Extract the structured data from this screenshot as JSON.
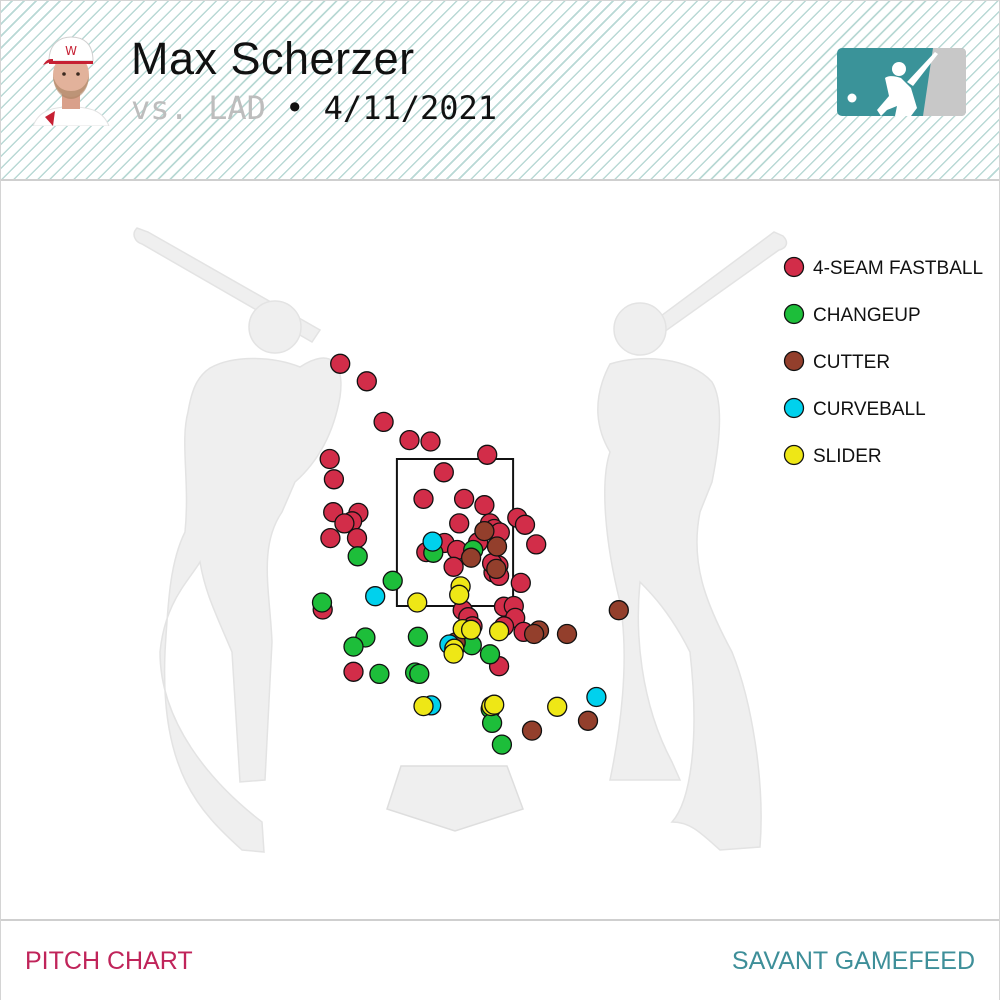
{
  "header": {
    "player_name": "Max Scherzer",
    "opponent": "vs. LAD",
    "separator": "•",
    "date": "4/11/2021"
  },
  "footer": {
    "left_label": "PITCH CHART",
    "right_label": "SAVANT GAMEFEED"
  },
  "icons": {
    "avatar": "player-headshot",
    "logo": "mlb-logo",
    "left_batter": "batter-silhouette-left",
    "right_batter": "batter-silhouette-right",
    "plate": "home-plate"
  },
  "colors": {
    "4-SEAM FASTBALL": "#d22d49",
    "CHANGEUP": "#1dbe3a",
    "CUTTER": "#933f2c",
    "CURVEBALL": "#00d1ed",
    "SLIDER": "#eee716",
    "logo_teal": "#3a9399",
    "logo_gray": "#c8c8c8",
    "silhouette": "#efefef"
  },
  "chart_data": {
    "type": "scatter",
    "xlabel": "",
    "ylabel": "",
    "xlim": [
      -2.6,
      2.6
    ],
    "ylim": [
      -0.3,
      5.7
    ],
    "strike_zone": {
      "x": [
        -0.83,
        0.83
      ],
      "z": [
        1.5,
        3.6
      ]
    },
    "legend": [
      "4-SEAM FASTBALL",
      "CHANGEUP",
      "CUTTER",
      "CURVEBALL",
      "SLIDER"
    ],
    "legend_position": "top-right",
    "grid": false,
    "pitches": [
      {
        "type": "4-SEAM FASTBALL",
        "x": -1.64,
        "z": 4.96
      },
      {
        "type": "4-SEAM FASTBALL",
        "x": -1.26,
        "z": 4.71
      },
      {
        "type": "4-SEAM FASTBALL",
        "x": -1.02,
        "z": 4.13
      },
      {
        "type": "4-SEAM FASTBALL",
        "x": -0.65,
        "z": 3.87
      },
      {
        "type": "4-SEAM FASTBALL",
        "x": -0.35,
        "z": 3.85
      },
      {
        "type": "4-SEAM FASTBALL",
        "x": 0.46,
        "z": 3.66
      },
      {
        "type": "4-SEAM FASTBALL",
        "x": -1.79,
        "z": 3.6
      },
      {
        "type": "4-SEAM FASTBALL",
        "x": -0.16,
        "z": 3.41
      },
      {
        "type": "4-SEAM FASTBALL",
        "x": -1.73,
        "z": 3.31
      },
      {
        "type": "4-SEAM FASTBALL",
        "x": -0.45,
        "z": 3.03
      },
      {
        "type": "4-SEAM FASTBALL",
        "x": 0.13,
        "z": 3.03
      },
      {
        "type": "4-SEAM FASTBALL",
        "x": 0.42,
        "z": 2.94
      },
      {
        "type": "4-SEAM FASTBALL",
        "x": -1.74,
        "z": 2.84
      },
      {
        "type": "4-SEAM FASTBALL",
        "x": -1.38,
        "z": 2.83
      },
      {
        "type": "4-SEAM FASTBALL",
        "x": -1.47,
        "z": 2.71
      },
      {
        "type": "4-SEAM FASTBALL",
        "x": -1.58,
        "z": 2.68
      },
      {
        "type": "4-SEAM FASTBALL",
        "x": 0.89,
        "z": 2.76
      },
      {
        "type": "4-SEAM FASTBALL",
        "x": 1.0,
        "z": 2.66
      },
      {
        "type": "4-SEAM FASTBALL",
        "x": 0.06,
        "z": 2.68
      },
      {
        "type": "4-SEAM FASTBALL",
        "x": 0.5,
        "z": 2.68
      },
      {
        "type": "4-SEAM FASTBALL",
        "x": 0.56,
        "z": 2.6
      },
      {
        "type": "4-SEAM FASTBALL",
        "x": 0.64,
        "z": 2.55
      },
      {
        "type": "4-SEAM FASTBALL",
        "x": -1.78,
        "z": 2.47
      },
      {
        "type": "4-SEAM FASTBALL",
        "x": -1.4,
        "z": 2.47
      },
      {
        "type": "4-SEAM FASTBALL",
        "x": -0.15,
        "z": 2.4
      },
      {
        "type": "4-SEAM FASTBALL",
        "x": 0.33,
        "z": 2.41
      },
      {
        "type": "4-SEAM FASTBALL",
        "x": 1.16,
        "z": 2.38
      },
      {
        "type": "4-SEAM FASTBALL",
        "x": -0.41,
        "z": 2.27
      },
      {
        "type": "4-SEAM FASTBALL",
        "x": 0.03,
        "z": 2.3
      },
      {
        "type": "4-SEAM FASTBALL",
        "x": -0.02,
        "z": 2.06
      },
      {
        "type": "4-SEAM FASTBALL",
        "x": 0.62,
        "z": 2.08
      },
      {
        "type": "4-SEAM FASTBALL",
        "x": 0.55,
        "z": 1.98
      },
      {
        "type": "4-SEAM FASTBALL",
        "x": 0.63,
        "z": 1.93
      },
      {
        "type": "4-SEAM FASTBALL",
        "x": 0.53,
        "z": 2.11
      },
      {
        "type": "4-SEAM FASTBALL",
        "x": 0.94,
        "z": 1.83
      },
      {
        "type": "4-SEAM FASTBALL",
        "x": 0.7,
        "z": 1.49
      },
      {
        "type": "4-SEAM FASTBALL",
        "x": 0.84,
        "z": 1.5
      },
      {
        "type": "4-SEAM FASTBALL",
        "x": 0.86,
        "z": 1.33
      },
      {
        "type": "4-SEAM FASTBALL",
        "x": 0.11,
        "z": 1.44
      },
      {
        "type": "4-SEAM FASTBALL",
        "x": 0.19,
        "z": 1.34
      },
      {
        "type": "4-SEAM FASTBALL",
        "x": 0.25,
        "z": 1.21
      },
      {
        "type": "4-SEAM FASTBALL",
        "x": -1.89,
        "z": 1.45
      },
      {
        "type": "4-SEAM FASTBALL",
        "x": -1.45,
        "z": 0.56
      },
      {
        "type": "4-SEAM FASTBALL",
        "x": 0.63,
        "z": 0.64
      },
      {
        "type": "4-SEAM FASTBALL",
        "x": 0.7,
        "z": 1.21
      },
      {
        "type": "4-SEAM FASTBALL",
        "x": 0.98,
        "z": 1.13
      },
      {
        "type": "CHANGEUP",
        "x": -1.39,
        "z": 2.21
      },
      {
        "type": "CHANGEUP",
        "x": -0.89,
        "z": 1.86
      },
      {
        "type": "CHANGEUP",
        "x": -0.31,
        "z": 2.26
      },
      {
        "type": "CHANGEUP",
        "x": -1.9,
        "z": 1.55
      },
      {
        "type": "CHANGEUP",
        "x": -0.53,
        "z": 1.06
      },
      {
        "type": "CHANGEUP",
        "x": -1.28,
        "z": 1.05
      },
      {
        "type": "CHANGEUP",
        "x": -1.45,
        "z": 0.92
      },
      {
        "type": "CHANGEUP",
        "x": 0.24,
        "z": 0.94
      },
      {
        "type": "CHANGEUP",
        "x": 0.5,
        "z": 0.81
      },
      {
        "type": "CHANGEUP",
        "x": -1.08,
        "z": 0.53
      },
      {
        "type": "CHANGEUP",
        "x": -0.57,
        "z": 0.55
      },
      {
        "type": "CHANGEUP",
        "x": -0.51,
        "z": 0.53
      },
      {
        "type": "CHANGEUP",
        "x": 0.51,
        "z": 0.03
      },
      {
        "type": "CHANGEUP",
        "x": 0.53,
        "z": -0.17
      },
      {
        "type": "CHANGEUP",
        "x": 0.67,
        "z": -0.48
      },
      {
        "type": "CHANGEUP",
        "x": 0.26,
        "z": 2.3
      },
      {
        "type": "CUTTER",
        "x": 0.42,
        "z": 2.57
      },
      {
        "type": "CUTTER",
        "x": 0.6,
        "z": 2.35
      },
      {
        "type": "CUTTER",
        "x": 0.23,
        "z": 2.19
      },
      {
        "type": "CUTTER",
        "x": 0.59,
        "z": 2.03
      },
      {
        "type": "CUTTER",
        "x": 1.2,
        "z": 1.15
      },
      {
        "type": "CUTTER",
        "x": 1.13,
        "z": 1.1
      },
      {
        "type": "CUTTER",
        "x": 1.6,
        "z": 1.1
      },
      {
        "type": "CUTTER",
        "x": 2.34,
        "z": 1.44
      },
      {
        "type": "CUTTER",
        "x": 0.01,
        "z": 0.98
      },
      {
        "type": "CUTTER",
        "x": 1.9,
        "z": -0.14
      },
      {
        "type": "CUTTER",
        "x": 1.1,
        "z": -0.28
      },
      {
        "type": "CURVEBALL",
        "x": -0.32,
        "z": 2.42
      },
      {
        "type": "CURVEBALL",
        "x": -1.14,
        "z": 1.64
      },
      {
        "type": "CURVEBALL",
        "x": -0.08,
        "z": 0.95
      },
      {
        "type": "CURVEBALL",
        "x": -0.34,
        "z": 0.08
      },
      {
        "type": "CURVEBALL",
        "x": 2.02,
        "z": 0.2
      },
      {
        "type": "SLIDER",
        "x": 0.08,
        "z": 1.78
      },
      {
        "type": "SLIDER",
        "x": 0.06,
        "z": 1.66
      },
      {
        "type": "SLIDER",
        "x": -0.54,
        "z": 1.55
      },
      {
        "type": "SLIDER",
        "x": 0.11,
        "z": 1.17
      },
      {
        "type": "SLIDER",
        "x": 0.23,
        "z": 1.16
      },
      {
        "type": "SLIDER",
        "x": 0.63,
        "z": 1.14
      },
      {
        "type": "SLIDER",
        "x": -0.01,
        "z": 0.89
      },
      {
        "type": "SLIDER",
        "x": -0.02,
        "z": 0.82
      },
      {
        "type": "SLIDER",
        "x": -0.45,
        "z": 0.07
      },
      {
        "type": "SLIDER",
        "x": 0.52,
        "z": 0.07
      },
      {
        "type": "SLIDER",
        "x": 0.56,
        "z": 0.09
      },
      {
        "type": "SLIDER",
        "x": 1.46,
        "z": 0.06
      }
    ]
  }
}
